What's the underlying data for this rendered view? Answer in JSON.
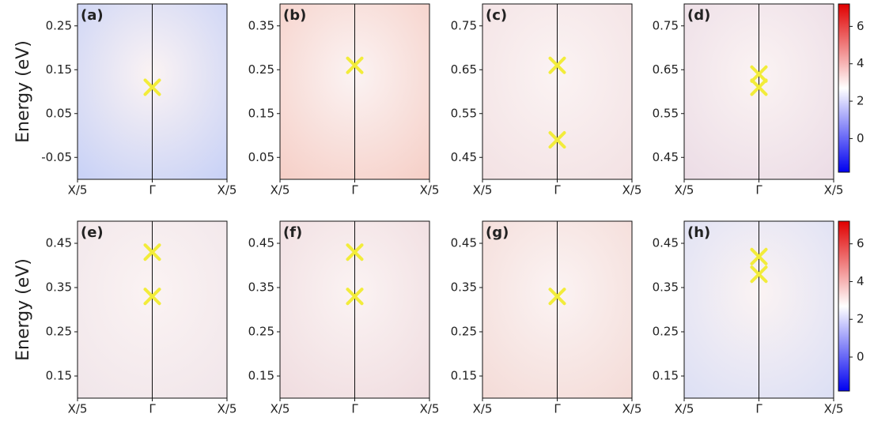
{
  "chart_data": [
    {
      "type": "heatmap",
      "panel": "(a)",
      "ylabel": "Energy (eV)",
      "background": "#c9d2f6",
      "marker_color": "#f2ec3a",
      "xlim": [
        -1,
        1
      ],
      "xticks": [
        {
          "value": -1,
          "label": "X/5"
        },
        {
          "value": 0,
          "label": "Γ"
        },
        {
          "value": 1,
          "label": "X/5"
        }
      ],
      "ylim": [
        -0.1,
        0.3
      ],
      "yticks": [
        -0.05,
        0.05,
        0.15,
        0.25
      ],
      "points": {
        "x": [
          0
        ],
        "y": [
          0.11
        ]
      }
    },
    {
      "type": "heatmap",
      "panel": "(b)",
      "background": "#f6d0c8",
      "marker_color": "#f2ec3a",
      "xlim": [
        -1,
        1
      ],
      "xticks": [
        {
          "value": -1,
          "label": "X/5"
        },
        {
          "value": 0,
          "label": "Γ"
        },
        {
          "value": 1,
          "label": "X/5"
        }
      ],
      "ylim": [
        0,
        0.4
      ],
      "yticks": [
        0.05,
        0.15,
        0.25,
        0.35
      ],
      "points": {
        "x": [
          0
        ],
        "y": [
          0.26
        ]
      }
    },
    {
      "type": "heatmap",
      "panel": "(c)",
      "background": "#f3e2e4",
      "marker_color": "#f2ec3a",
      "xlim": [
        -1,
        1
      ],
      "xticks": [
        {
          "value": -1,
          "label": "X/5"
        },
        {
          "value": 0,
          "label": "Γ"
        },
        {
          "value": 1,
          "label": "X/5"
        }
      ],
      "ylim": [
        0.4,
        0.8
      ],
      "yticks": [
        0.45,
        0.55,
        0.65,
        0.75
      ],
      "points": {
        "x": [
          0,
          0
        ],
        "y": [
          0.66,
          0.49
        ]
      }
    },
    {
      "type": "heatmap",
      "panel": "(d)",
      "background": "#ecdde6",
      "marker_color": "#f2ec3a",
      "xlim": [
        -1,
        1
      ],
      "xticks": [
        {
          "value": -1,
          "label": "X/5"
        },
        {
          "value": 0,
          "label": "Γ"
        },
        {
          "value": 1,
          "label": "X/5"
        }
      ],
      "ylim": [
        0.4,
        0.8
      ],
      "yticks": [
        0.45,
        0.55,
        0.65,
        0.75
      ],
      "points": {
        "x": [
          0,
          0
        ],
        "y": [
          0.64,
          0.61
        ]
      }
    },
    {
      "type": "heatmap",
      "panel": "(e)",
      "ylabel": "Energy (eV)",
      "background": "#f1e6ea",
      "marker_color": "#f2ec3a",
      "xlim": [
        -1,
        1
      ],
      "xticks": [
        {
          "value": -1,
          "label": "X/5"
        },
        {
          "value": 0,
          "label": "Γ"
        },
        {
          "value": 1,
          "label": "X/5"
        }
      ],
      "ylim": [
        0.1,
        0.5
      ],
      "yticks": [
        0.15,
        0.25,
        0.35,
        0.45
      ],
      "points": {
        "x": [
          0,
          0
        ],
        "y": [
          0.43,
          0.33
        ]
      }
    },
    {
      "type": "heatmap",
      "panel": "(f)",
      "background": "#f0dde0",
      "marker_color": "#f2ec3a",
      "xlim": [
        -1,
        1
      ],
      "xticks": [
        {
          "value": -1,
          "label": "X/5"
        },
        {
          "value": 0,
          "label": "Γ"
        },
        {
          "value": 1,
          "label": "X/5"
        }
      ],
      "ylim": [
        0.1,
        0.5
      ],
      "yticks": [
        0.15,
        0.25,
        0.35,
        0.45
      ],
      "points": {
        "x": [
          0,
          0
        ],
        "y": [
          0.43,
          0.33
        ]
      }
    },
    {
      "type": "heatmap",
      "panel": "(g)",
      "background": "#f4dcd8",
      "marker_color": "#f2ec3a",
      "xlim": [
        -1,
        1
      ],
      "xticks": [
        {
          "value": -1,
          "label": "X/5"
        },
        {
          "value": 0,
          "label": "Γ"
        },
        {
          "value": 1,
          "label": "X/5"
        }
      ],
      "ylim": [
        0.1,
        0.5
      ],
      "yticks": [
        0.15,
        0.25,
        0.35,
        0.45
      ],
      "points": {
        "x": [
          0
        ],
        "y": [
          0.33
        ]
      }
    },
    {
      "type": "heatmap",
      "panel": "(h)",
      "background": "#dde0f4",
      "marker_color": "#f2ec3a",
      "xlim": [
        -1,
        1
      ],
      "xticks": [
        {
          "value": -1,
          "label": "X/5"
        },
        {
          "value": 0,
          "label": "Γ"
        },
        {
          "value": 1,
          "label": "X/5"
        }
      ],
      "ylim": [
        0.1,
        0.5
      ],
      "yticks": [
        0.15,
        0.25,
        0.35,
        0.45
      ],
      "points": {
        "x": [
          0,
          0
        ],
        "y": [
          0.42,
          0.38
        ]
      }
    },
    {
      "type": "colorbar",
      "colors": [
        "#0000f0",
        "#ffffff",
        "#e00000"
      ],
      "ylim": [
        -1.8,
        7.2
      ],
      "yticks": [
        0,
        2,
        4,
        6
      ]
    },
    {
      "type": "colorbar",
      "colors": [
        "#0000f0",
        "#ffffff",
        "#e00000"
      ],
      "ylim": [
        -1.8,
        7.2
      ],
      "yticks": [
        0,
        2,
        4,
        6
      ]
    }
  ]
}
